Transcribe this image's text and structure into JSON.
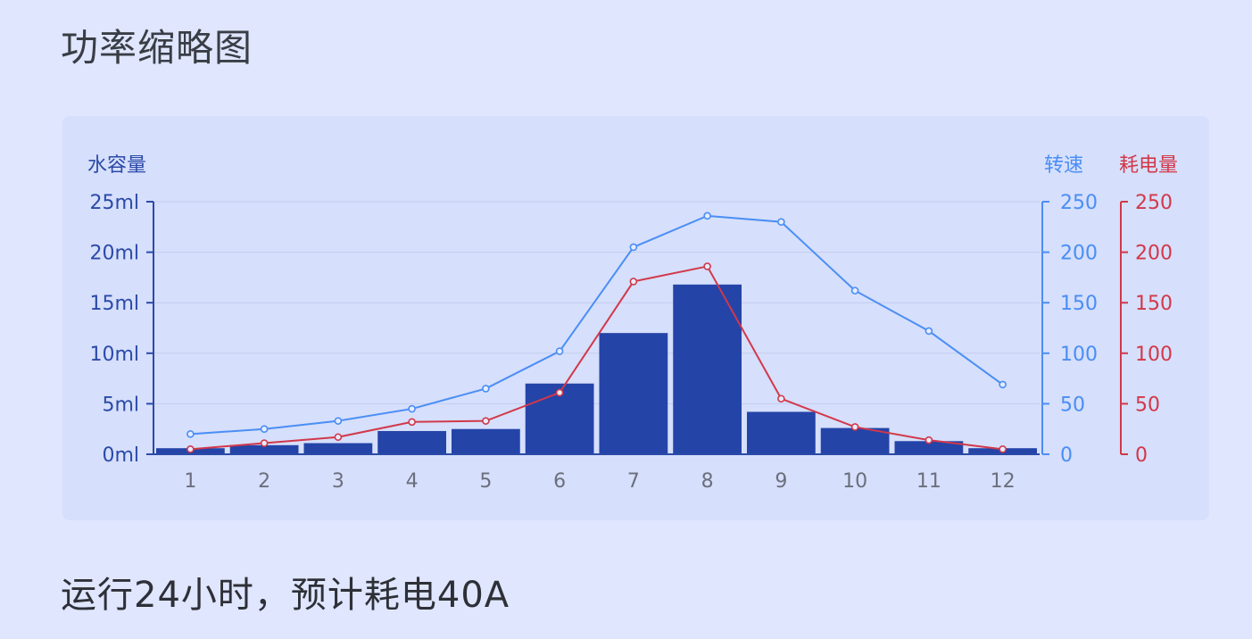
{
  "page": {
    "title": "功率缩略图",
    "summary": "运行24小时，预计耗电40A"
  },
  "colors": {
    "bar": "#2444a8",
    "left_axis": "#2b4aa8",
    "speed": "#4a8ef5",
    "power": "#d2384a",
    "grid": "#c3cdf0",
    "x_label": "#6b6f7d"
  },
  "chart_data": {
    "type": "bar+line",
    "categories": [
      "1",
      "2",
      "3",
      "4",
      "5",
      "6",
      "7",
      "8",
      "9",
      "10",
      "11",
      "12"
    ],
    "axes": {
      "left": {
        "title": "水容量",
        "min": 0,
        "max": 25,
        "ticks": [
          "0ml",
          "5ml",
          "10ml",
          "15ml",
          "20ml",
          "25ml"
        ],
        "tick_values": [
          0,
          5,
          10,
          15,
          20,
          25
        ]
      },
      "right_speed": {
        "title": "转速",
        "min": 0,
        "max": 250,
        "ticks": [
          "0",
          "50",
          "100",
          "150",
          "200",
          "250"
        ],
        "tick_values": [
          0,
          50,
          100,
          150,
          200,
          250
        ]
      },
      "right_power": {
        "title": "耗电量",
        "min": 0,
        "max": 250,
        "ticks": [
          "0",
          "50",
          "100",
          "150",
          "200",
          "250"
        ],
        "tick_values": [
          0,
          50,
          100,
          150,
          200,
          250
        ]
      }
    },
    "series": [
      {
        "name": "水容量",
        "type": "bar",
        "axis": "left",
        "values": [
          0.6,
          0.9,
          1.1,
          2.3,
          2.5,
          7.0,
          12.0,
          16.8,
          4.2,
          2.6,
          1.3,
          0.6
        ]
      },
      {
        "name": "转速",
        "type": "line",
        "axis": "right_speed",
        "values": [
          20,
          25,
          33,
          45,
          65,
          102,
          205,
          236,
          230,
          162,
          122,
          69
        ]
      },
      {
        "name": "耗电量",
        "type": "line",
        "axis": "right_power",
        "values": [
          5,
          11,
          17,
          32,
          33,
          61,
          171,
          186,
          55,
          27,
          14,
          5
        ]
      }
    ],
    "grid": true
  }
}
